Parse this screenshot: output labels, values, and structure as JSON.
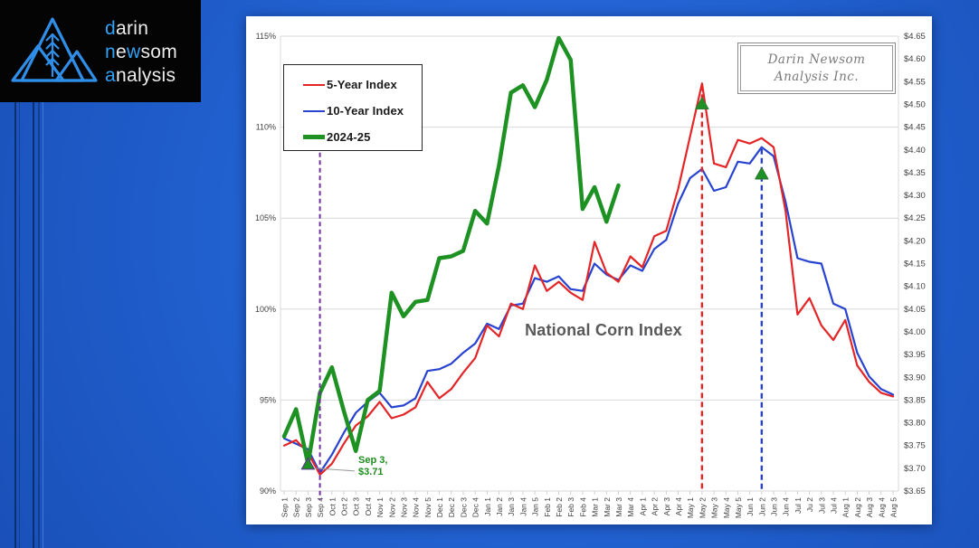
{
  "logo": {
    "lines": [
      [
        {
          "t": "d",
          "c": "accent"
        },
        {
          "t": "arin",
          "c": "base"
        }
      ],
      [
        {
          "t": "n",
          "c": "accent"
        },
        {
          "t": "e",
          "c": "base"
        },
        {
          "t": "w",
          "c": "accent"
        },
        {
          "t": "som",
          "c": "base"
        }
      ],
      [
        {
          "t": "a",
          "c": "accent"
        },
        {
          "t": "nalysis",
          "c": "base"
        }
      ]
    ],
    "accent_color": "#30a2f5"
  },
  "brand_box": {
    "line1": "Darin Newsom",
    "line2": "Analysis Inc."
  },
  "annotations": {
    "sep3": {
      "line1": "Sep 3,",
      "line2": "$3.71"
    }
  },
  "chart_data": {
    "type": "line",
    "title": "National Corn Index",
    "legend_position": "top-left",
    "grid": "horizontal-only",
    "categories": [
      "Sep 1",
      "Sep 2",
      "Sep 3",
      "Sep 4",
      "Oct 1",
      "Oct 2",
      "Oct 3",
      "Oct 4",
      "Nov 1",
      "Nov 2",
      "Nov 3",
      "Nov 4",
      "Nov 5",
      "Dec 1",
      "Dec 2",
      "Dec 3",
      "Dec 4",
      "Jan 1",
      "Jan 2",
      "Jan 3",
      "Jan 4",
      "Jan 5",
      "Feb 1",
      "Feb 2",
      "Feb 3",
      "Feb 4",
      "Mar 1",
      "Mar 2",
      "Mar 3",
      "Mar 4",
      "Apr 1",
      "Apr 2",
      "Apr 3",
      "Apr 4",
      "May 1",
      "May 2",
      "May 3",
      "May 4",
      "May 5",
      "Jun 1",
      "Jun 2",
      "Jun 3",
      "Jun 4",
      "Jul 1",
      "Ju 2",
      "Jul 3",
      "Jul 4",
      "Aug 1",
      "Aug 2",
      "Aug 3",
      "Aug 4",
      "Aug 5"
    ],
    "ylim_left_percent": [
      90,
      115
    ],
    "ylim_right_dollars": [
      3.65,
      4.65
    ],
    "y_ticks_left": [
      {
        "pct": 115,
        "label": "115%"
      },
      {
        "pct": 110,
        "label": "110%"
      },
      {
        "pct": 105,
        "label": "105%"
      },
      {
        "pct": 100,
        "label": "100%"
      },
      {
        "pct": 95,
        "label": "95%"
      },
      {
        "pct": 90,
        "label": "90%"
      }
    ],
    "y_ticks_right": [
      "$4.65",
      "$4.60",
      "$4.55",
      "$4.50",
      "$4.45",
      "$4.40",
      "$4.35",
      "$4.30",
      "$4.25",
      "$4.20",
      "$4.15",
      "$4.10",
      "$4.05",
      "$4.00",
      "$3.95",
      "$3.90",
      "$3.85",
      "$3.80",
      "$3.75",
      "$3.70",
      "$3.65"
    ],
    "series": [
      {
        "name": "10-Year Index",
        "color": "#2743d0",
        "width": 2.2,
        "values": [
          92.9,
          92.6,
          92.3,
          91.0,
          92.0,
          93.2,
          94.3,
          94.9,
          95.4,
          94.6,
          94.7,
          95.1,
          96.6,
          96.7,
          97.0,
          97.6,
          98.1,
          99.2,
          98.9,
          100.2,
          100.3,
          101.7,
          101.5,
          101.8,
          101.1,
          101.0,
          102.5,
          101.9,
          101.6,
          102.4,
          102.1,
          103.3,
          103.8,
          105.8,
          107.2,
          107.7,
          106.5,
          106.7,
          108.1,
          108.0,
          108.9,
          108.4,
          105.9,
          102.8,
          102.6,
          102.5,
          100.3,
          100.0,
          97.6,
          96.3,
          95.6,
          95.3
        ]
      },
      {
        "name": "5-Year Index",
        "color": "#e42527",
        "width": 2.2,
        "values": [
          92.5,
          92.8,
          92.1,
          90.9,
          91.5,
          92.6,
          93.6,
          94.1,
          94.9,
          94.0,
          94.2,
          94.6,
          96.0,
          95.1,
          95.6,
          96.5,
          97.3,
          99.1,
          98.5,
          100.3,
          100.0,
          102.4,
          101.0,
          101.5,
          100.9,
          100.5,
          103.7,
          102.0,
          101.5,
          102.9,
          102.3,
          104.0,
          104.3,
          106.6,
          109.5,
          112.4,
          108.0,
          107.8,
          109.3,
          109.1,
          109.4,
          108.9,
          105.4,
          99.7,
          100.6,
          99.1,
          98.3,
          99.4,
          96.9,
          96.0,
          95.4,
          95.2
        ]
      },
      {
        "name": "2024-25",
        "color": "#1e9123",
        "width": 4.5,
        "values": [
          93.0,
          94.5,
          91.5,
          95.4,
          96.8,
          94.4,
          92.2,
          95.0,
          95.5,
          100.9,
          99.6,
          100.4,
          100.5,
          102.8,
          102.9,
          103.2,
          105.4,
          104.7,
          107.9,
          111.9,
          112.3,
          111.1,
          112.6,
          114.9,
          113.7,
          105.5,
          106.7,
          104.8,
          106.8
        ]
      }
    ],
    "legend_order": [
      "5-Year Index",
      "10-Year Index",
      "2024-25"
    ],
    "vlines": [
      {
        "at": "Sep 4",
        "x_index": 3,
        "color": "#7030a0",
        "top_pct": 108.6,
        "bottom_pct": 89.5,
        "width": 2,
        "dash": "5,3.5"
      },
      {
        "at": "May 2",
        "x_index": 35,
        "color": "#e42527",
        "top_pct": 112.3,
        "bottom_pct": 90.0,
        "width": 2.4,
        "dash": "6,4"
      },
      {
        "at": "Jun 2",
        "x_index": 40,
        "color": "#2743d0",
        "top_pct": 108.8,
        "bottom_pct": 90.0,
        "width": 2.4,
        "dash": "6,4"
      }
    ],
    "markers": [
      {
        "at": "Sep 3",
        "x_index": 2,
        "pct": 91.5,
        "fill": "#1e9123",
        "stroke": "#5a3a8a",
        "note": "Sep 3, $3.71"
      },
      {
        "at": "May 2",
        "x_index": 35,
        "pct": 111.3,
        "fill": "#1e9123",
        "stroke": "#2e7d32"
      },
      {
        "at": "Jun 2",
        "x_index": 40,
        "pct": 107.45,
        "fill": "#1e9123",
        "stroke": "#2e7d32"
      }
    ],
    "colors": {
      "gridline": "#d9d9d9",
      "axis_text": "#3f3f3f",
      "title_text": "#595959",
      "tick_mark": "#c6c6c6",
      "leader_line": "#9a9a9a"
    }
  }
}
